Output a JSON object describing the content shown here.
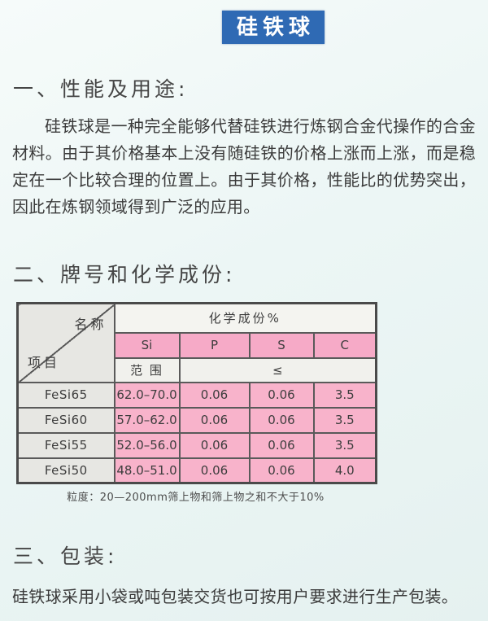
{
  "banner": {
    "title": "硅铁球"
  },
  "section1": {
    "heading": "一、性能及用途:",
    "paragraph": "硅铁球是一种完全能够代替硅铁进行炼钢合金代操作的合金材料。由于其价格基本上没有随硅铁的价格上涨而上涨，而是稳定在一个比较合理的位置上。由于其价格，性能比的优势突出，因此在炼钢领域得到广泛的应用。"
  },
  "section2": {
    "heading": "二、牌号和化学成份:"
  },
  "table": {
    "corner": {
      "top_right_label": "名称",
      "bottom_left_label": "项目"
    },
    "group_header": "化学成份%",
    "columns": [
      "Si",
      "P",
      "S",
      "C"
    ],
    "range_row": {
      "label": "范 围",
      "limit_symbol": "≤"
    },
    "rows": [
      {
        "grade": "FeSi65",
        "values": [
          "62.0–70.0",
          "0.06",
          "0.06",
          "3.5"
        ]
      },
      {
        "grade": "FeSi60",
        "values": [
          "57.0–62.0",
          "0.06",
          "0.06",
          "3.5"
        ]
      },
      {
        "grade": "FeSi55",
        "values": [
          "52.0–56.0",
          "0.06",
          "0.06",
          "3.5"
        ]
      },
      {
        "grade": "FeSi50",
        "values": [
          "48.0–51.0",
          "0.06",
          "0.06",
          "4.0"
        ]
      }
    ],
    "footnote": "粒度：20—200mm筛上物和筛上物之和不大于10%"
  },
  "section3": {
    "heading": "三、包装:",
    "paragraph": "硅铁球采用小袋或吨包装交货也可按用户要求进行生产包装。"
  },
  "colors": {
    "banner_blue": "#2f6ab4",
    "cell_pink": "#f8b3cb",
    "header_pink": "#f6aac7",
    "cell_gray": "#e7e7e3",
    "cell_light": "#f1f1ed",
    "page_background": "#ecf6f5"
  }
}
